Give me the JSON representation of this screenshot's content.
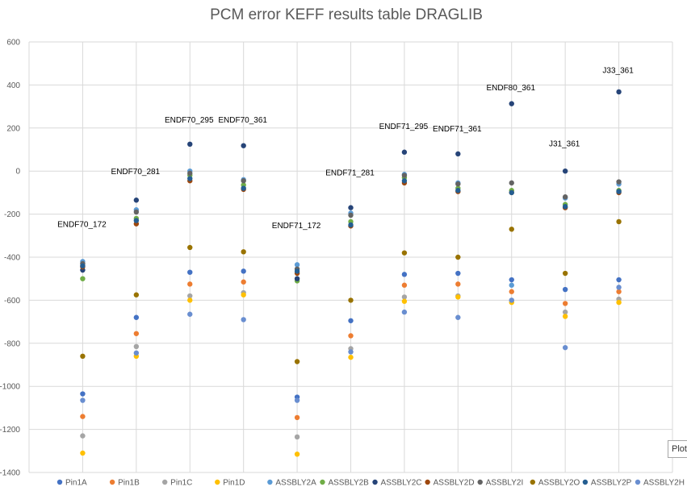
{
  "chart_data": {
    "type": "scatter",
    "title": "PCM error KEFF results table DRAGLIB",
    "ylim": [
      -1400,
      600
    ],
    "yticks": [
      "600",
      "400",
      "200",
      "0",
      "-200",
      "-400",
      "-600",
      "-800",
      "-1000",
      "-1200",
      "-1400"
    ],
    "ytick_values": [
      600,
      400,
      200,
      0,
      -200,
      -400,
      -600,
      -800,
      -1000,
      -1200,
      -1400
    ],
    "xlim": [
      0,
      12
    ],
    "grid": true,
    "legend_position": "bottom",
    "groups": [
      "ENDF70_172",
      "ENDF70_281",
      "ENDF70_295",
      "ENDF70_361",
      "ENDF71_172",
      "ENDF71_281",
      "ENDF71_295",
      "ENDF71_361",
      "ENDF80_361",
      "J31_361",
      "J33_361"
    ],
    "group_label_y": [
      -260,
      -15,
      225,
      225,
      -265,
      -20,
      195,
      185,
      375,
      115,
      455
    ],
    "series": [
      {
        "name": "Pin1A",
        "color": "#4472c4",
        "values": [
          -1035,
          -680,
          -470,
          -465,
          -1050,
          -695,
          -480,
          -475,
          -505,
          -550,
          -505
        ]
      },
      {
        "name": "Pin1B",
        "color": "#ed7d31",
        "values": [
          -1140,
          -755,
          -525,
          -515,
          -1145,
          -765,
          -530,
          -525,
          -560,
          -615,
          -560
        ]
      },
      {
        "name": "Pin1C",
        "color": "#a5a5a5",
        "values": [
          -1230,
          -815,
          -580,
          -565,
          -1235,
          -825,
          -585,
          -580,
          -600,
          -655,
          -595
        ]
      },
      {
        "name": "Pin1D",
        "color": "#ffc000",
        "values": [
          -1310,
          -860,
          -600,
          -575,
          -1315,
          -865,
          -605,
          -585,
          -610,
          -675,
          -610
        ]
      },
      {
        "name": "ASSBLY2A",
        "color": "#5b9bd5",
        "values": [
          -420,
          -180,
          0,
          -40,
          -435,
          -195,
          -15,
          -55,
          -530,
          -125,
          -60
        ]
      },
      {
        "name": "ASSBLY2B",
        "color": "#70ad47",
        "values": [
          -500,
          -220,
          -20,
          -65,
          -510,
          -235,
          -30,
          -80,
          -90,
          -155,
          -90
        ]
      },
      {
        "name": "ASSBLY2C",
        "color": "#264478",
        "values": [
          -460,
          -135,
          125,
          118,
          -500,
          -170,
          88,
          80,
          313,
          0,
          368
        ]
      },
      {
        "name": "ASSBLY2D",
        "color": "#9e480e",
        "values": [
          -445,
          -245,
          -45,
          -85,
          -475,
          -255,
          -55,
          -95,
          -100,
          -170,
          -100
        ]
      },
      {
        "name": "ASSBLY2I",
        "color": "#636363",
        "values": [
          -430,
          -190,
          -10,
          -45,
          -455,
          -205,
          -20,
          -60,
          -55,
          -120,
          -50
        ]
      },
      {
        "name": "ASSBLY2O",
        "color": "#997300",
        "values": [
          -860,
          -575,
          -355,
          -375,
          -885,
          -600,
          -380,
          -400,
          -270,
          -475,
          -235
        ]
      },
      {
        "name": "ASSBLY2P",
        "color": "#255e91",
        "values": [
          -440,
          -230,
          -35,
          -80,
          -465,
          -250,
          -45,
          -90,
          -100,
          -165,
          -95
        ]
      },
      {
        "name": "ASSBLY2H",
        "color": "#698ed0",
        "values": [
          -1065,
          -845,
          -665,
          -690,
          -1065,
          -840,
          -655,
          -680,
          -600,
          -820,
          -540
        ]
      }
    ]
  },
  "ui": {
    "tooltip_text": "Plot"
  }
}
